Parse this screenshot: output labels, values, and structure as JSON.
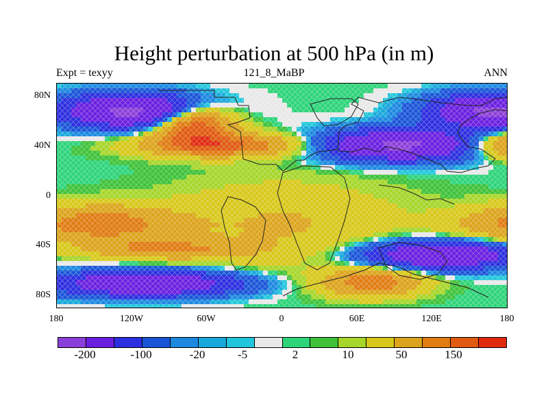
{
  "title": "Height perturbation at 500 hPa (in m)",
  "left_subtitle": "Expt = texyy",
  "center_subtitle": "121_8_MaBP",
  "right_subtitle": "ANN",
  "lat_labels": [
    "80N",
    "40N",
    "0",
    "40S",
    "80S"
  ],
  "lon_labels": [
    "180",
    "120W",
    "60W",
    "0",
    "60E",
    "120E",
    "180"
  ],
  "colorbar": {
    "labels": [
      "-200",
      "-100",
      "-20",
      "-5",
      "2",
      "10",
      "50",
      "150"
    ],
    "colors": [
      "#8b3fd9",
      "#6a1fe0",
      "#2c2ee0",
      "#1a55d8",
      "#1c88e0",
      "#19a8dc",
      "#22c6dc",
      "#e8e8e8",
      "#2ed47a",
      "#3fc23a",
      "#a6d62a",
      "#d8c81a",
      "#dca41c",
      "#e07c12",
      "#e05a10",
      "#e02a10"
    ]
  },
  "map_data": {
    "field": "500 hPa height perturbation",
    "units": "m",
    "bands": [
      {
        "lat_range": [
          60,
          85
        ],
        "region": "northern North Pacific / North America",
        "level": "-200 to -100"
      },
      {
        "lat_range": [
          30,
          50
        ],
        "region": "Pacific / Atlantic mid-latitudes",
        "level": "50 to 150"
      },
      {
        "lat_range": [
          30,
          60
        ],
        "region": "Eurasia",
        "level": "-200 to -100"
      },
      {
        "lat_range": [
          -10,
          20
        ],
        "region": "tropics",
        "level": "-5 to 10"
      },
      {
        "lat_range": [
          -50,
          -35
        ],
        "region": "South Pacific",
        "level": "50 to 150"
      },
      {
        "lat_range": [
          -75,
          -55
        ],
        "region": "Southern Ocean",
        "level": "-200 to -100"
      },
      {
        "lat_range": [
          -75,
          -55
        ],
        "region": "Africa south / Antarctica sector",
        "level": "50 to 150"
      }
    ]
  }
}
